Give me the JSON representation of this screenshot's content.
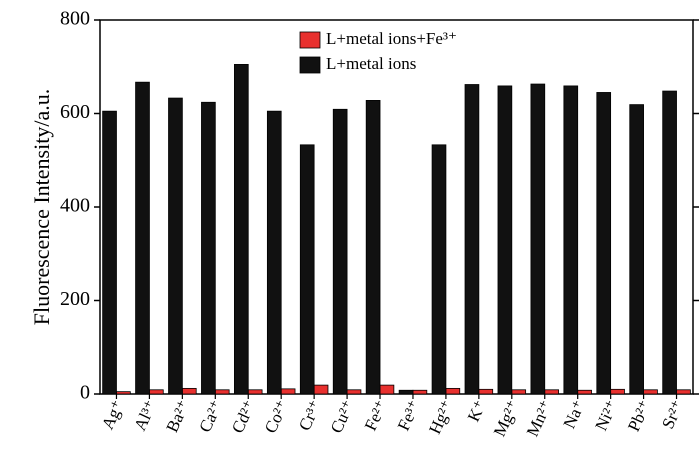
{
  "chart_data": {
    "type": "bar",
    "ylabel": "Fluorescence Intensity/a.u.",
    "categories": [
      "Ag⁺",
      "Al³⁺",
      "Ba²⁺",
      "Ca²⁺",
      "Cd²⁺",
      "Co²⁺",
      "Cr³⁺",
      "Cu²⁺",
      "Fe²⁺",
      "Fe³⁺",
      "Hg²⁺",
      "K⁺",
      "Mg²⁺",
      "Mn²⁺",
      "Na⁺",
      "Ni²⁺",
      "Pb²⁺",
      "Sr²⁺"
    ],
    "series": [
      {
        "name": "L+metal ions+Fe³⁺",
        "color": "#e8302e",
        "values": [
          5,
          9,
          12,
          9,
          9,
          11,
          19,
          9,
          19,
          8,
          12,
          10,
          9,
          9,
          8,
          10,
          9,
          9
        ]
      },
      {
        "name": "L+metal ions",
        "color": "#111111",
        "values": [
          605,
          667,
          633,
          624,
          705,
          605,
          533,
          609,
          628,
          8,
          533,
          662,
          659,
          663,
          659,
          645,
          619,
          648
        ]
      }
    ],
    "ylim": [
      0,
      800
    ],
    "yticks": [
      0,
      200,
      400,
      600,
      800
    ]
  }
}
